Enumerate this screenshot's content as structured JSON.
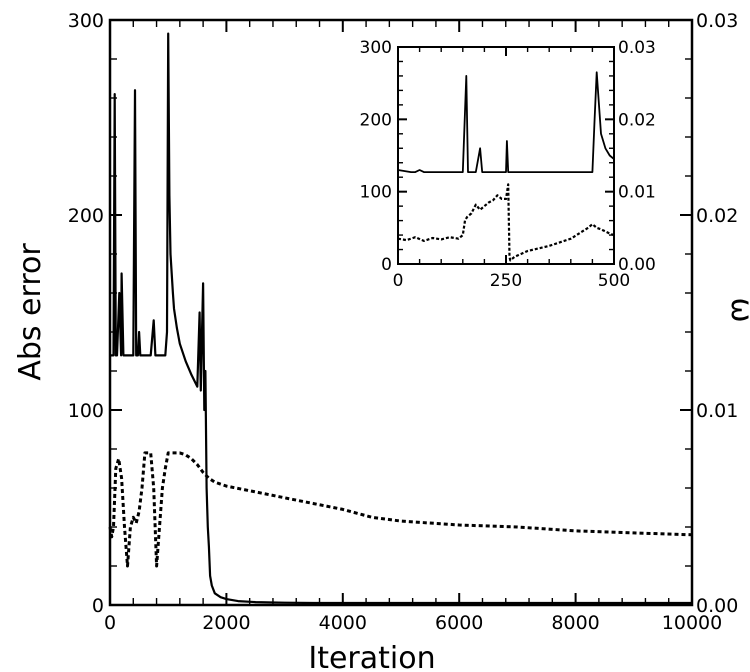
{
  "chart_data": [
    {
      "type": "line",
      "title": "",
      "xlabel": "Iteration",
      "ylabel": "Abs error",
      "y2label": "ω",
      "xlim": [
        0,
        10000
      ],
      "ylim": [
        0,
        300
      ],
      "y2lim": [
        0,
        0.03
      ],
      "x_ticks": [
        0,
        2000,
        4000,
        6000,
        8000,
        10000
      ],
      "y_ticks": [
        0,
        100,
        200,
        300
      ],
      "y2_ticks": [
        0.0,
        0.01,
        0.02,
        0.03
      ],
      "x_tick_labels": [
        "0",
        "2000",
        "4000",
        "6000",
        "8000",
        "10000"
      ],
      "y_tick_labels": [
        "0",
        "100",
        "200",
        "300"
      ],
      "y2_tick_labels": [
        "0.00",
        "0.01",
        "0.02",
        "0.03"
      ],
      "grid": false,
      "series": [
        {
          "style": "solid",
          "axis": "left",
          "x": [
            0,
            60,
            80,
            100,
            120,
            160,
            190,
            200,
            230,
            250,
            270,
            300,
            350,
            400,
            430,
            450,
            480,
            500,
            520,
            540,
            600,
            700,
            750,
            780,
            800,
            830,
            900,
            950,
            980,
            1000,
            1020,
            1040,
            1060,
            1080,
            1100,
            1150,
            1200,
            1300,
            1400,
            1500,
            1540,
            1560,
            1580,
            1600,
            1620,
            1640,
            1660,
            1680,
            1700,
            1720,
            1750,
            1800,
            1900,
            2000,
            2200,
            2500,
            3000,
            3500,
            4000,
            5000,
            6000,
            7000,
            8000,
            9000,
            10000
          ],
          "y": [
            128,
            128,
            262,
            128,
            128,
            160,
            128,
            170,
            128,
            128,
            128,
            128,
            128,
            128,
            264,
            128,
            128,
            140,
            128,
            128,
            128,
            128,
            146,
            128,
            128,
            128,
            128,
            128,
            140,
            293,
            210,
            180,
            170,
            160,
            152,
            142,
            134,
            125,
            118,
            112,
            150,
            110,
            140,
            165,
            100,
            120,
            60,
            40,
            30,
            15,
            10,
            6,
            4,
            3,
            2,
            1.5,
            1.2,
            1,
            1,
            1,
            1,
            1,
            1,
            1,
            1
          ]
        },
        {
          "style": "dashed",
          "axis": "left",
          "x": [
            0,
            30,
            60,
            100,
            150,
            200,
            250,
            300,
            350,
            400,
            450,
            500,
            550,
            600,
            650,
            700,
            750,
            800,
            850,
            900,
            950,
            1000,
            1050,
            1100,
            1150,
            1200,
            1300,
            1400,
            1500,
            1600,
            1700,
            1800,
            2000,
            2500,
            3000,
            3500,
            4000,
            4500,
            5000,
            6000,
            7000,
            8000,
            9000,
            10000
          ],
          "y": [
            40,
            35,
            40,
            70,
            75,
            65,
            40,
            20,
            40,
            45,
            42,
            48,
            60,
            78,
            78,
            78,
            60,
            20,
            40,
            60,
            70,
            78,
            78,
            78,
            78,
            78,
            77,
            75,
            72,
            68,
            65,
            63,
            61,
            58,
            55,
            52,
            49,
            45,
            43,
            41,
            40,
            38,
            37,
            36
          ]
        }
      ]
    },
    {
      "type": "line",
      "title": "",
      "xlabel": "",
      "ylabel": "",
      "xlim": [
        0,
        500
      ],
      "ylim": [
        0,
        300
      ],
      "y2lim": [
        0,
        0.03
      ],
      "x_ticks": [
        0,
        250,
        500
      ],
      "y_ticks": [
        0,
        100,
        200,
        300
      ],
      "y2_ticks": [
        0.0,
        0.01,
        0.02,
        0.03
      ],
      "x_tick_labels": [
        "0",
        "250",
        "500"
      ],
      "y_tick_labels": [
        "0",
        "100",
        "200",
        "300"
      ],
      "y2_tick_labels": [
        "0.00",
        "0.01",
        "0.02",
        "0.03"
      ],
      "grid": false,
      "series": [
        {
          "style": "solid",
          "axis": "left",
          "x": [
            0,
            30,
            40,
            50,
            60,
            100,
            150,
            158,
            162,
            170,
            180,
            190,
            195,
            200,
            250,
            252,
            255,
            260,
            300,
            350,
            400,
            440,
            450,
            455,
            460,
            470,
            480,
            490,
            500
          ],
          "y": [
            130,
            127,
            127,
            130,
            127,
            127,
            127,
            260,
            127,
            127,
            127,
            160,
            127,
            127,
            127,
            170,
            127,
            127,
            127,
            127,
            127,
            127,
            127,
            200,
            265,
            180,
            160,
            150,
            145
          ]
        },
        {
          "style": "dashed",
          "axis": "left",
          "x": [
            0,
            20,
            40,
            60,
            80,
            100,
            120,
            140,
            150,
            155,
            160,
            170,
            180,
            190,
            200,
            210,
            220,
            230,
            240,
            250,
            255,
            258,
            260,
            270,
            300,
            350,
            400,
            440,
            450,
            460,
            470,
            480,
            490,
            500
          ],
          "y": [
            35,
            33,
            37,
            32,
            36,
            34,
            37,
            35,
            40,
            60,
            65,
            70,
            82,
            75,
            80,
            85,
            88,
            95,
            90,
            90,
            110,
            10,
            5,
            10,
            18,
            25,
            35,
            50,
            55,
            50,
            48,
            45,
            42,
            40
          ]
        }
      ]
    }
  ]
}
